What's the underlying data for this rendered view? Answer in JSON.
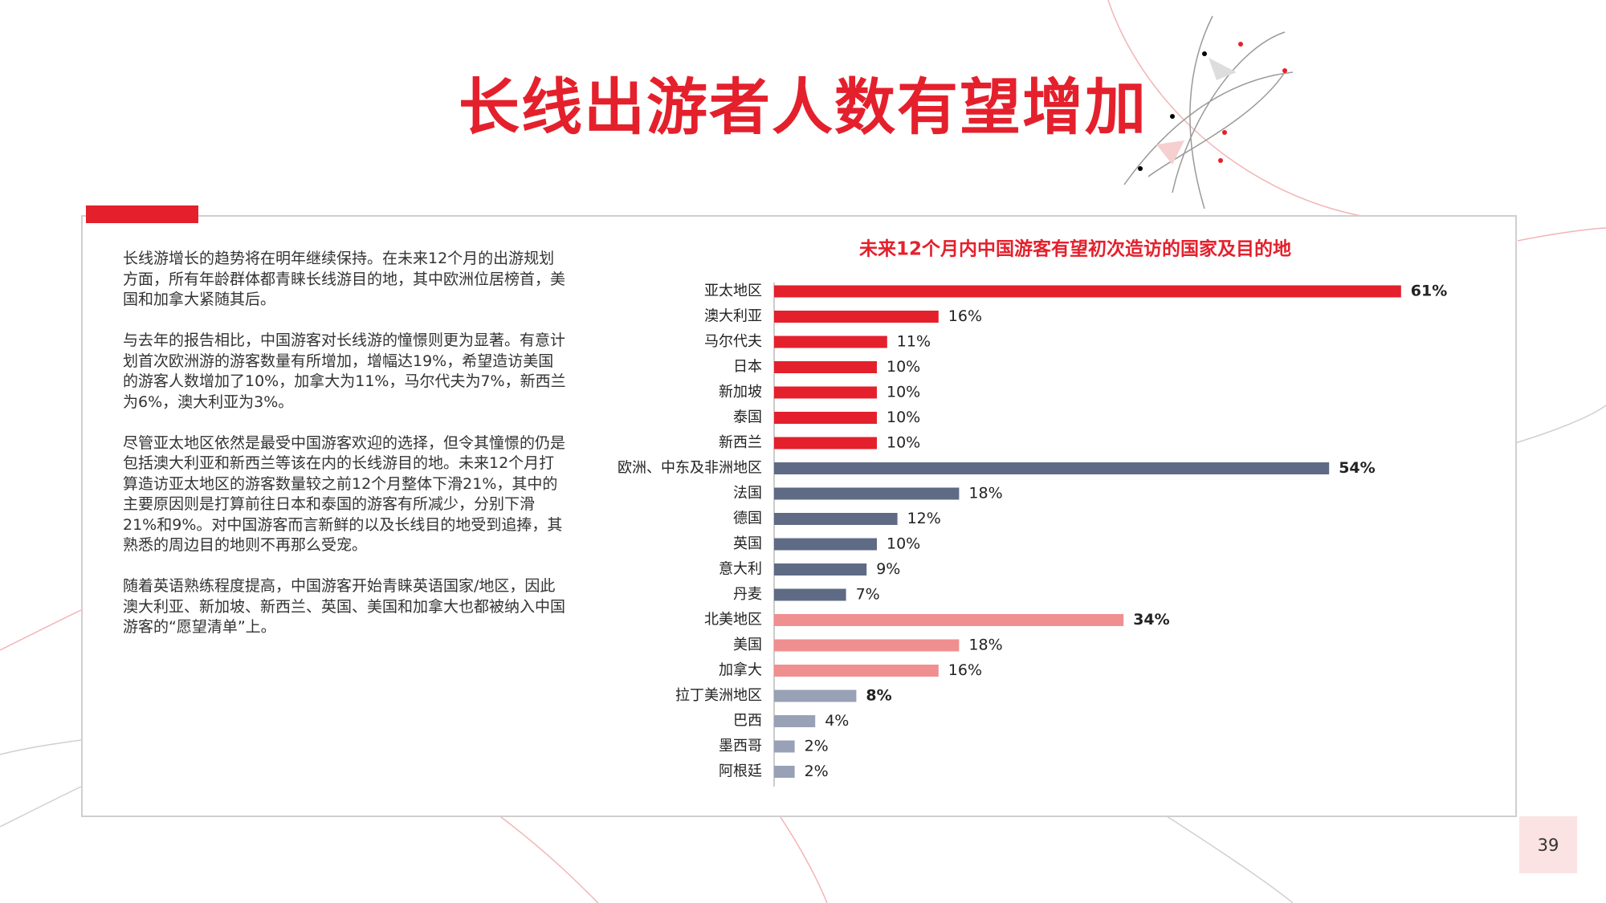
{
  "title": "长线出游者人数有望增加",
  "paragraphs": [
    "长线游增长的趋势将在明年继续保持。在未来12个月的出游规划方面，所有年龄群体都青睐长线游目的地，其中欧洲位居榜首，美国和加拿大紧随其后。",
    "与去年的报告相比，中国游客对长线游的憧憬则更为显著。有意计划首次欧洲游的游客数量有所增加，增幅达19%，希望造访美国的游客人数增加了10%，加拿大为11%，马尔代夫为7%，新西兰为6%，澳大利亚为3%。",
    "尽管亚太地区依然是最受中国游客欢迎的选择，但令其憧憬的仍是包括澳大利亚和新西兰等该在内的长线游目的地。未来12个月打算造访亚太地区的游客数量较之前12个月整体下滑21%，其中的主要原因则是打算前往日本和泰国的游客有所减少，分别下滑21%和9%。对中国游客而言新鲜的以及长线目的地受到追捧，其熟悉的周边目的地则不再那么受宠。",
    "随着英语熟练程度提高，中国游客开始青睐英语国家/地区，因此澳大利亚、新加坡、新西兰、英国、美国和加拿大也都被纳入中国游客的“愿望清单”上。"
  ],
  "page_number": "39",
  "chart_data": {
    "type": "hbar",
    "title": "未来12个月内中国游客有望初次造访的国家及目的地",
    "categories": [
      "亚太地区",
      "澳大利亚",
      "马尔代夫",
      "日本",
      "新加坡",
      "泰国",
      "新西兰",
      "欧洲、中东及非洲地区",
      "法国",
      "德国",
      "英国",
      "意大利",
      "丹麦",
      "北美地区",
      "美国",
      "加拿大",
      "拉丁美洲地区",
      "巴西",
      "墨西哥",
      "阿根廷"
    ],
    "values": [
      61,
      16,
      11,
      10,
      10,
      10,
      10,
      54,
      18,
      12,
      10,
      9,
      7,
      34,
      18,
      16,
      8,
      4,
      2,
      2
    ],
    "value_labels": [
      "61%",
      "16%",
      "11%",
      "10%",
      "10%",
      "10%",
      "10%",
      "54%",
      "18%",
      "12%",
      "10%",
      "9%",
      "7%",
      "34%",
      "18%",
      "16%",
      "8%",
      "4%",
      "2%",
      "2%"
    ],
    "colors": [
      "#e4202c",
      "#e4202c",
      "#e4202c",
      "#e4202c",
      "#e4202c",
      "#e4202c",
      "#e4202c",
      "#5f6b85",
      "#5f6b85",
      "#5f6b85",
      "#5f6b85",
      "#5f6b85",
      "#5f6b85",
      "#f08f90",
      "#f08f90",
      "#f08f90",
      "#98a1b6",
      "#98a1b6",
      "#98a1b6",
      "#98a1b6"
    ]
  }
}
